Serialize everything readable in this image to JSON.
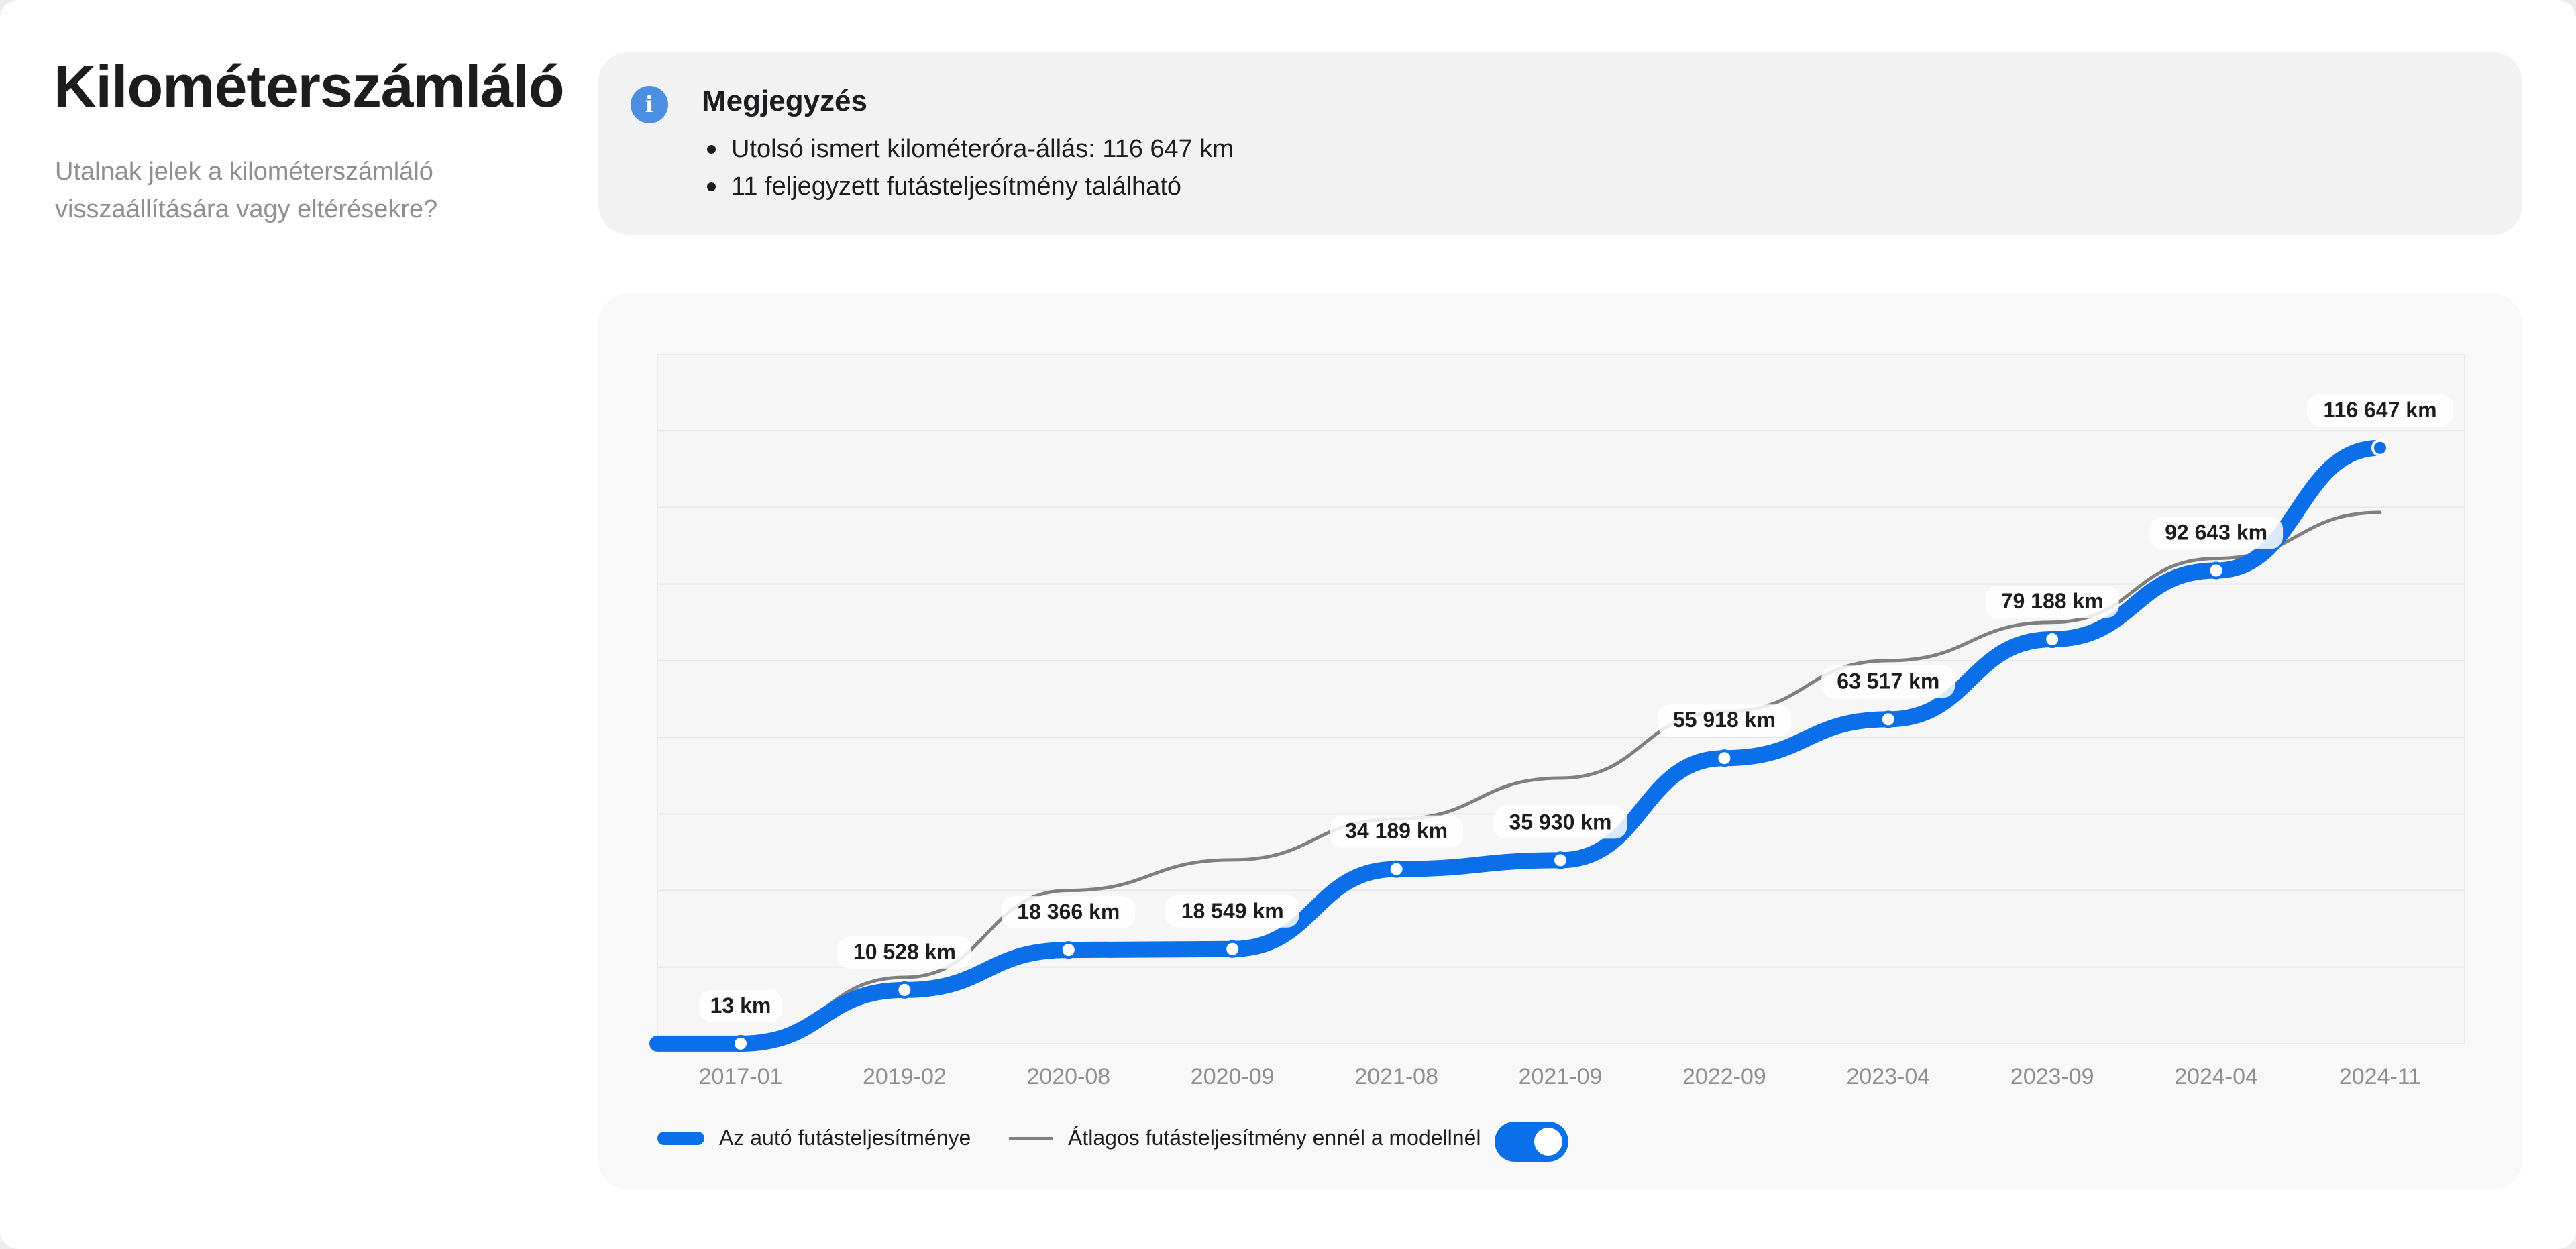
{
  "header": {
    "title": "Kilométerszámláló",
    "subtitle": "Utalnak jelek a kilométerszámláló visszaállítására vagy eltérésekre?"
  },
  "note": {
    "icon": "info-icon",
    "heading": "Megjegyzés",
    "items": [
      "Utolsó ismert kilométeróra-állás: 116 647 km",
      "11 feljegyzett futásteljesítmény található"
    ]
  },
  "chart_data": {
    "type": "line",
    "title": "",
    "xlabel": "",
    "ylabel": "",
    "ylim": [
      0,
      135000
    ],
    "grid": true,
    "categories": [
      "2017-01",
      "2019-02",
      "2020-08",
      "2020-09",
      "2021-08",
      "2021-09",
      "2022-09",
      "2023-04",
      "2023-09",
      "2024-04",
      "2024-11"
    ],
    "series": [
      {
        "name": "Az autó futásteljesítménye",
        "color": "#0a6fe8",
        "values": [
          13,
          10528,
          18366,
          18549,
          34189,
          35930,
          55918,
          63517,
          79188,
          92643,
          116647
        ],
        "labels": [
          "13 km",
          "10 528 km",
          "18 366 km",
          "18 549 km",
          "34 189 km",
          "35 930 km",
          "55 918 km",
          "63 517 km",
          "79 188 km",
          "92 643 km",
          "116 647 km"
        ]
      },
      {
        "name": "Átlagos futásteljesítmény ennél a modellnél",
        "color": "#7f7f7f",
        "values": [
          100,
          13000,
          30000,
          36000,
          44000,
          52000,
          65000,
          75000,
          82500,
          95000,
          104000
        ]
      }
    ],
    "legend": "bottom-left"
  },
  "legend": {
    "car_label": "Az autó futásteljesítménye",
    "avg_label": "Átlagos futásteljesítmény ennél a modellnél",
    "toggle_on": true
  }
}
